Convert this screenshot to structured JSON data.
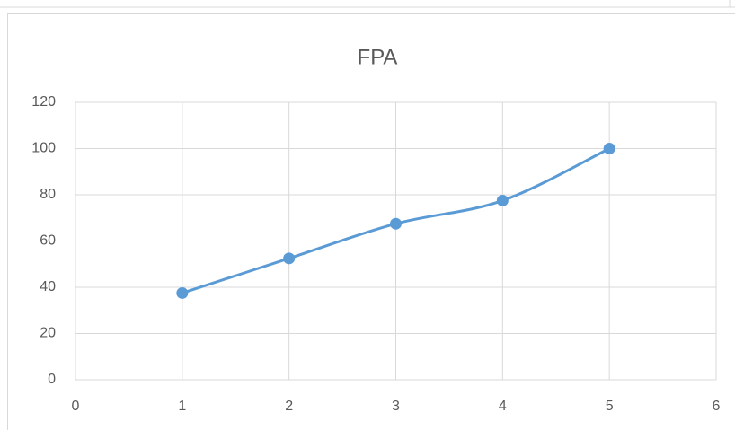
{
  "chart_data": {
    "type": "scatter",
    "title": "FPA",
    "x": [
      1,
      2,
      3,
      4,
      5
    ],
    "series": [
      {
        "name": "FPA",
        "color": "#5b9bd5",
        "values": [
          37.5,
          52.5,
          67.5,
          77.5,
          100
        ]
      }
    ],
    "smooth": true,
    "xlim": [
      0,
      6
    ],
    "xticks": [
      0,
      1,
      2,
      3,
      4,
      5,
      6
    ],
    "ylim": [
      0,
      120
    ],
    "yticks": [
      0,
      20,
      40,
      60,
      80,
      100,
      120
    ],
    "grid": true
  }
}
